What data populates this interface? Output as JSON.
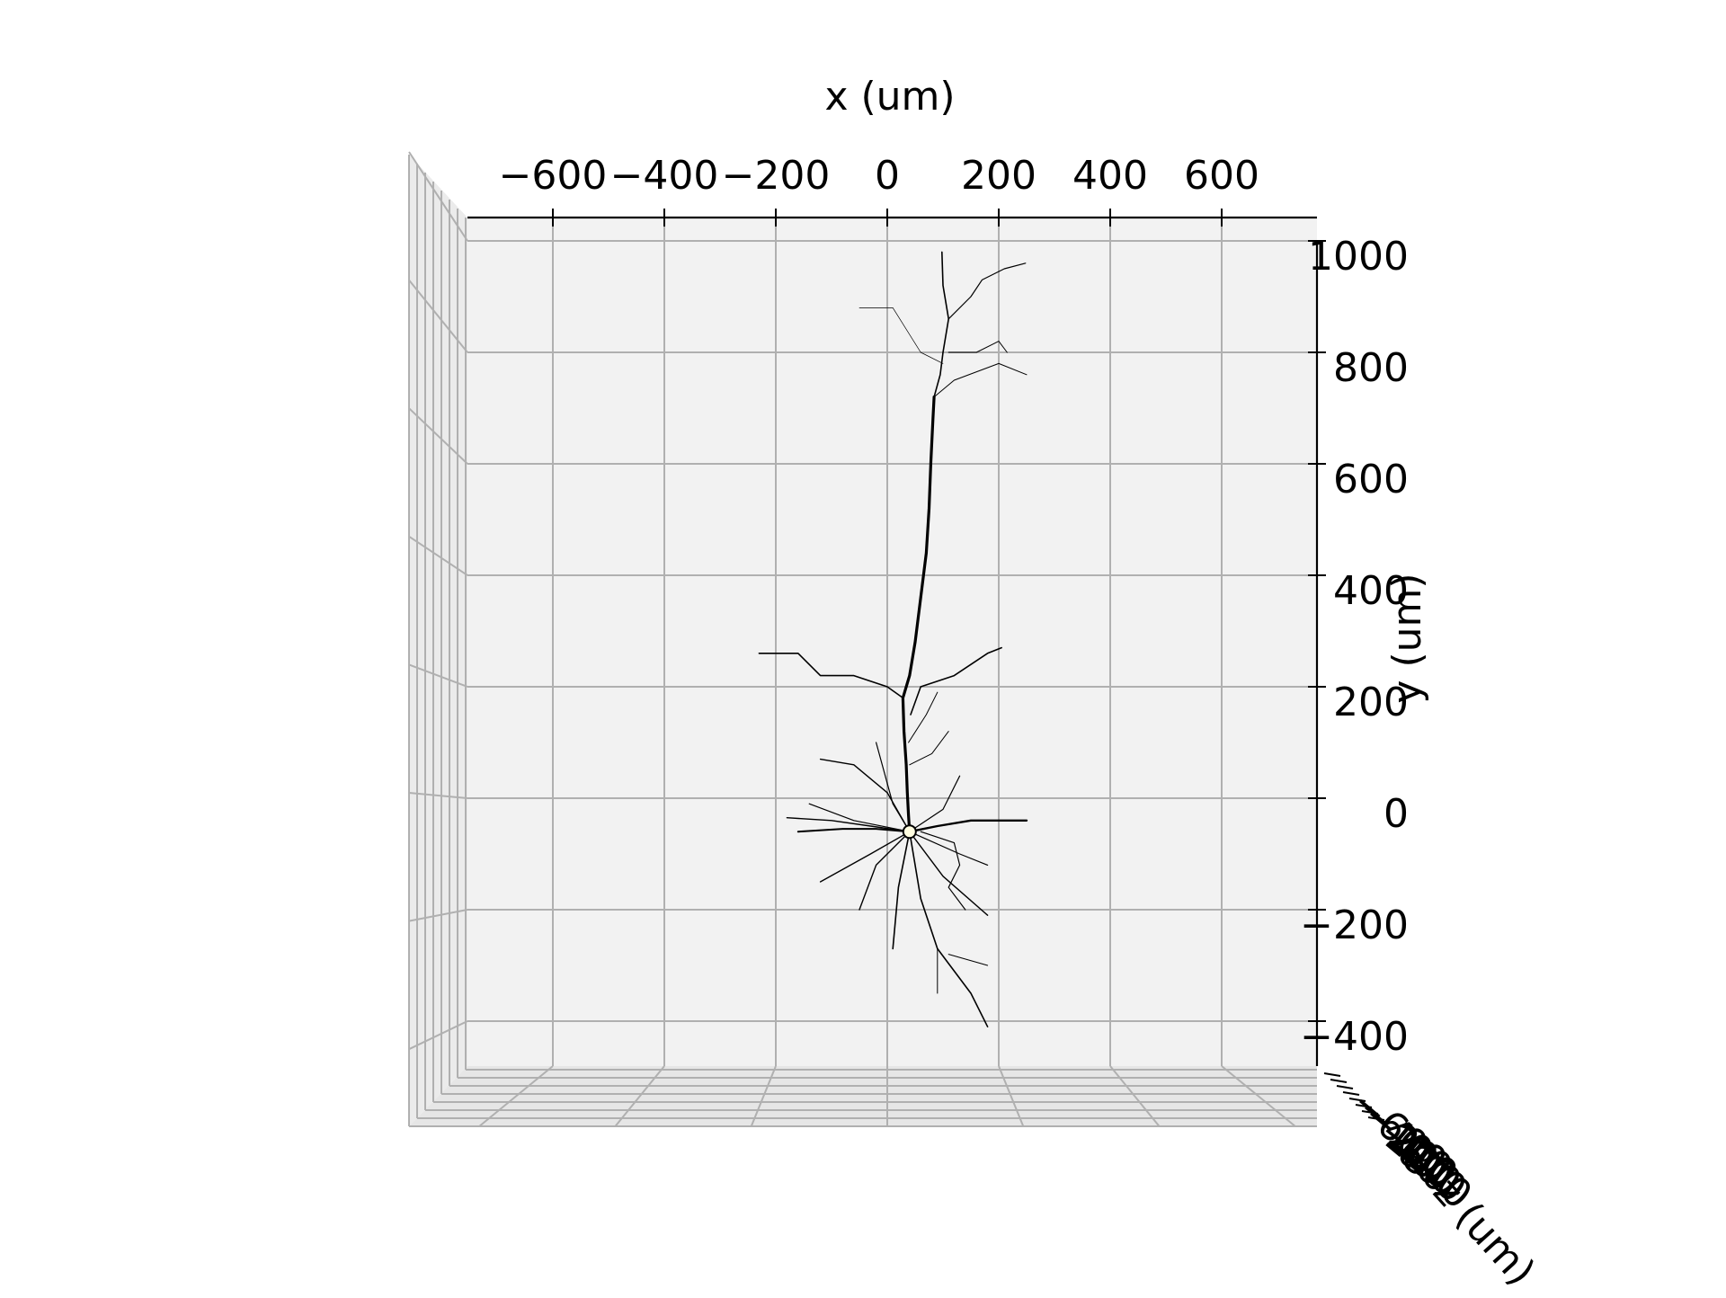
{
  "chart_data": {
    "type": "3d-line",
    "title": "",
    "xlabel": "x (um)",
    "ylabel": "y (um)",
    "zlabel": "z (um)",
    "x_ticks": [
      -600,
      -400,
      -200,
      0,
      200,
      400,
      600
    ],
    "y_ticks": [
      -400,
      -200,
      0,
      200,
      400,
      600,
      800,
      1000
    ],
    "z_ticks": [
      -600,
      -400,
      -200,
      0,
      200,
      400,
      600,
      800
    ],
    "xlim": [
      -750,
      770
    ],
    "ylim": [
      -480,
      1050
    ],
    "grid": true,
    "pane_color": "#f2f2f2",
    "grid_color": "#b0b0b0",
    "neurite_color": "#000000",
    "soma": {
      "x": 40,
      "y": -60,
      "color": "#fffde0"
    },
    "branches": [
      {
        "w": 3.2,
        "pts": [
          [
            40,
            -60
          ],
          [
            38,
            -30
          ],
          [
            36,
            10
          ],
          [
            34,
            60
          ],
          [
            30,
            120
          ],
          [
            28,
            180
          ],
          [
            40,
            220
          ],
          [
            50,
            280
          ],
          [
            60,
            360
          ],
          [
            70,
            440
          ],
          [
            75,
            520
          ],
          [
            78,
            600
          ],
          [
            82,
            680
          ],
          [
            84,
            720
          ]
        ]
      },
      {
        "w": 1.6,
        "pts": [
          [
            84,
            720
          ],
          [
            95,
            760
          ],
          [
            100,
            800
          ],
          [
            110,
            860
          ],
          [
            100,
            920
          ],
          [
            98,
            980
          ]
        ]
      },
      {
        "w": 1.2,
        "pts": [
          [
            110,
            860
          ],
          [
            150,
            900
          ],
          [
            170,
            930
          ],
          [
            210,
            950
          ],
          [
            248,
            960
          ]
        ]
      },
      {
        "w": 1.0,
        "pts": [
          [
            110,
            800
          ],
          [
            160,
            800
          ],
          [
            200,
            820
          ],
          [
            215,
            800
          ]
        ]
      },
      {
        "w": 1.0,
        "pts": [
          [
            84,
            720
          ],
          [
            120,
            750
          ],
          [
            200,
            780
          ],
          [
            250,
            760
          ]
        ]
      },
      {
        "w": 0.7,
        "pts": [
          [
            100,
            780
          ],
          [
            60,
            800
          ],
          [
            10,
            880
          ],
          [
            -50,
            880
          ]
        ]
      },
      {
        "w": 1.6,
        "pts": [
          [
            42,
            150
          ],
          [
            60,
            200
          ],
          [
            120,
            220
          ],
          [
            180,
            260
          ],
          [
            205,
            270
          ]
        ]
      },
      {
        "w": 1.6,
        "pts": [
          [
            28,
            180
          ],
          [
            0,
            200
          ],
          [
            -60,
            220
          ],
          [
            -120,
            220
          ],
          [
            -160,
            260
          ],
          [
            -230,
            260
          ]
        ]
      },
      {
        "w": 2.4,
        "pts": [
          [
            40,
            -60
          ],
          [
            90,
            -50
          ],
          [
            150,
            -40
          ],
          [
            200,
            -40
          ],
          [
            250,
            -40
          ]
        ]
      },
      {
        "w": 2.0,
        "pts": [
          [
            40,
            -60
          ],
          [
            -20,
            -55
          ],
          [
            -80,
            -55
          ],
          [
            -160,
            -60
          ]
        ]
      },
      {
        "w": 1.4,
        "pts": [
          [
            40,
            -60
          ],
          [
            -30,
            -50
          ],
          [
            -100,
            -40
          ],
          [
            -180,
            -35
          ]
        ]
      },
      {
        "w": 1.4,
        "pts": [
          [
            40,
            -60
          ],
          [
            -30,
            -100
          ],
          [
            -120,
            -150
          ]
        ]
      },
      {
        "w": 1.4,
        "pts": [
          [
            40,
            -60
          ],
          [
            -20,
            -120
          ],
          [
            -50,
            -200
          ]
        ]
      },
      {
        "w": 1.6,
        "pts": [
          [
            40,
            -60
          ],
          [
            20,
            -160
          ],
          [
            10,
            -270
          ]
        ]
      },
      {
        "w": 1.6,
        "pts": [
          [
            40,
            -60
          ],
          [
            60,
            -180
          ],
          [
            90,
            -270
          ],
          [
            150,
            -350
          ],
          [
            180,
            -410
          ]
        ]
      },
      {
        "w": 1.0,
        "pts": [
          [
            90,
            -270
          ],
          [
            90,
            -350
          ]
        ]
      },
      {
        "w": 1.0,
        "pts": [
          [
            110,
            -280
          ],
          [
            180,
            -300
          ]
        ]
      },
      {
        "w": 1.4,
        "pts": [
          [
            40,
            -60
          ],
          [
            100,
            -140
          ],
          [
            180,
            -210
          ]
        ]
      },
      {
        "w": 1.2,
        "pts": [
          [
            60,
            -60
          ],
          [
            120,
            -80
          ],
          [
            130,
            -120
          ],
          [
            110,
            -160
          ],
          [
            140,
            -200
          ]
        ]
      },
      {
        "w": 1.4,
        "pts": [
          [
            40,
            -60
          ],
          [
            0,
            10
          ],
          [
            -60,
            60
          ],
          [
            -120,
            70
          ]
        ]
      },
      {
        "w": 1.2,
        "pts": [
          [
            40,
            -60
          ],
          [
            10,
            -10
          ],
          [
            -20,
            100
          ]
        ]
      },
      {
        "w": 1.2,
        "pts": [
          [
            40,
            -60
          ],
          [
            100,
            -20
          ],
          [
            130,
            40
          ]
        ]
      },
      {
        "w": 1.2,
        "pts": [
          [
            40,
            -60
          ],
          [
            -60,
            -40
          ],
          [
            -140,
            -10
          ]
        ]
      },
      {
        "w": 1.0,
        "pts": [
          [
            40,
            60
          ],
          [
            80,
            80
          ],
          [
            110,
            120
          ]
        ]
      },
      {
        "w": 1.0,
        "pts": [
          [
            38,
            100
          ],
          [
            70,
            150
          ],
          [
            90,
            190
          ]
        ]
      },
      {
        "w": 1.2,
        "pts": [
          [
            40,
            -60
          ],
          [
            130,
            -100
          ],
          [
            180,
            -120
          ]
        ]
      }
    ]
  }
}
